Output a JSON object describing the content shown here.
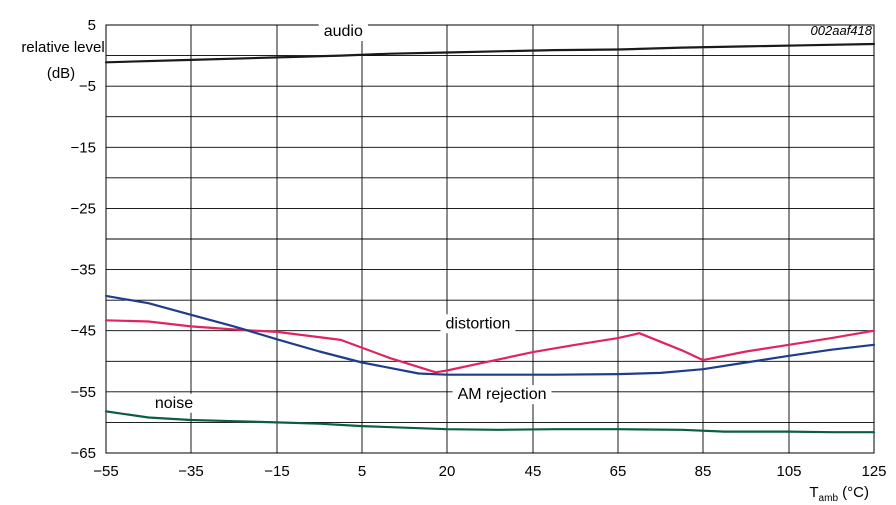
{
  "chart_data": {
    "type": "line",
    "figure_code": "002aaf418",
    "ylabel_lines": [
      "relative level",
      "(dB)"
    ],
    "xlabel": {
      "main": "T",
      "sub": "amb",
      "unit": " (°C)"
    },
    "xlim": [
      -55,
      125
    ],
    "ylim": [
      -65,
      5
    ],
    "x_ticks": [
      -55,
      -35,
      -15,
      5,
      20,
      45,
      65,
      85,
      105,
      125
    ],
    "x_tick_labels": [
      "−55",
      "−35",
      "−15",
      "5",
      "20",
      "45",
      "65",
      "85",
      "105",
      "125"
    ],
    "y_ticks": [
      5,
      -5,
      -15,
      -25,
      -35,
      -45,
      -55,
      -65
    ],
    "y_tick_labels": [
      "5",
      "−5",
      "−15",
      "−25",
      "−35",
      "−45",
      "−55",
      "−65"
    ],
    "grid": true,
    "series": [
      {
        "name": "audio",
        "color": "#1a1a1a",
        "x": [
          -55,
          -35,
          -15,
          0,
          10,
          20,
          35,
          50,
          65,
          80,
          95,
          110,
          125
        ],
        "y": [
          -1.1,
          -0.7,
          -0.3,
          0,
          0.3,
          0.5,
          0.7,
          0.9,
          1.0,
          1.3,
          1.5,
          1.7,
          1.9
        ],
        "label_x": 0.6,
        "label_y": 3.2
      },
      {
        "name": "distortion",
        "color": "#e0245e",
        "x": [
          -55,
          -45,
          -35,
          -25,
          -15,
          0,
          10,
          18,
          20,
          30,
          45,
          55,
          65,
          70,
          80,
          85,
          95,
          105,
          115,
          125
        ],
        "y": [
          -43.3,
          -43.5,
          -44.3,
          -44.8,
          -45.2,
          -46.5,
          -49.5,
          -51.8,
          -51.5,
          -50.3,
          -48.5,
          -47.3,
          -46.2,
          -45.4,
          -48.2,
          -49.8,
          -48.4,
          -47.3,
          -46.2,
          -45
        ],
        "label_x": 29,
        "label_y": -44.6
      },
      {
        "name": "AM rejection",
        "color": "#1f3d8c",
        "x": [
          -55,
          -45,
          -35,
          -25,
          -15,
          -5,
          5,
          15,
          20,
          35,
          50,
          65,
          75,
          85,
          95,
          105,
          115,
          125
        ],
        "y": [
          -39.3,
          -40.5,
          -42.4,
          -44.3,
          -46.4,
          -48.4,
          -50.2,
          -52,
          -52.2,
          -52.2,
          -52.2,
          -52.1,
          -51.9,
          -51.3,
          -50.2,
          -49.1,
          -48.1,
          -47.3
        ],
        "label_x": 36,
        "label_y": -56.2
      },
      {
        "name": "noise",
        "color": "#0a5e44",
        "x": [
          -55,
          -45,
          -35,
          -25,
          -15,
          -5,
          5,
          20,
          35,
          50,
          65,
          80,
          90,
          105,
          115,
          125
        ],
        "y": [
          -58.2,
          -59.2,
          -59.6,
          -59.8,
          -60,
          -60.2,
          -60.6,
          -61.1,
          -61.2,
          -61.1,
          -61.1,
          -61.2,
          -61.5,
          -61.5,
          -61.6,
          -61.6
        ],
        "label_x": -39,
        "label_y": -57.6
      }
    ]
  }
}
